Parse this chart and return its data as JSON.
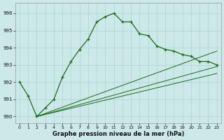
{
  "title": "Graphe pression niveau de la mer (hPa)",
  "background_color": "#cce8e8",
  "grid_color": "#add4d4",
  "line_color": "#1a6b1a",
  "xlim": [
    -0.5,
    23.5
  ],
  "ylim": [
    989.6,
    996.6
  ],
  "yticks": [
    990,
    991,
    992,
    993,
    994,
    995,
    996
  ],
  "xticks": [
    0,
    1,
    2,
    3,
    4,
    5,
    6,
    7,
    8,
    9,
    10,
    11,
    12,
    13,
    14,
    15,
    16,
    17,
    18,
    19,
    20,
    21,
    22,
    23
  ],
  "line1_x": [
    0,
    1,
    2,
    3,
    4,
    5,
    6,
    7,
    8,
    9,
    10,
    11,
    12,
    13,
    14,
    15,
    16,
    17,
    18,
    19,
    20,
    21,
    22,
    23
  ],
  "line1_y": [
    992.0,
    991.2,
    990.0,
    990.5,
    991.0,
    992.3,
    993.2,
    993.9,
    994.5,
    995.5,
    995.8,
    996.0,
    995.5,
    995.5,
    994.8,
    994.7,
    994.1,
    993.9,
    993.8,
    993.6,
    993.5,
    993.2,
    993.2,
    993.0
  ],
  "line2_x": [
    2,
    23
  ],
  "line2_y": [
    990.0,
    993.8
  ],
  "line3_x": [
    2,
    23
  ],
  "line3_y": [
    990.0,
    992.9
  ],
  "line4_x": [
    2,
    23
  ],
  "line4_y": [
    990.0,
    992.5
  ]
}
